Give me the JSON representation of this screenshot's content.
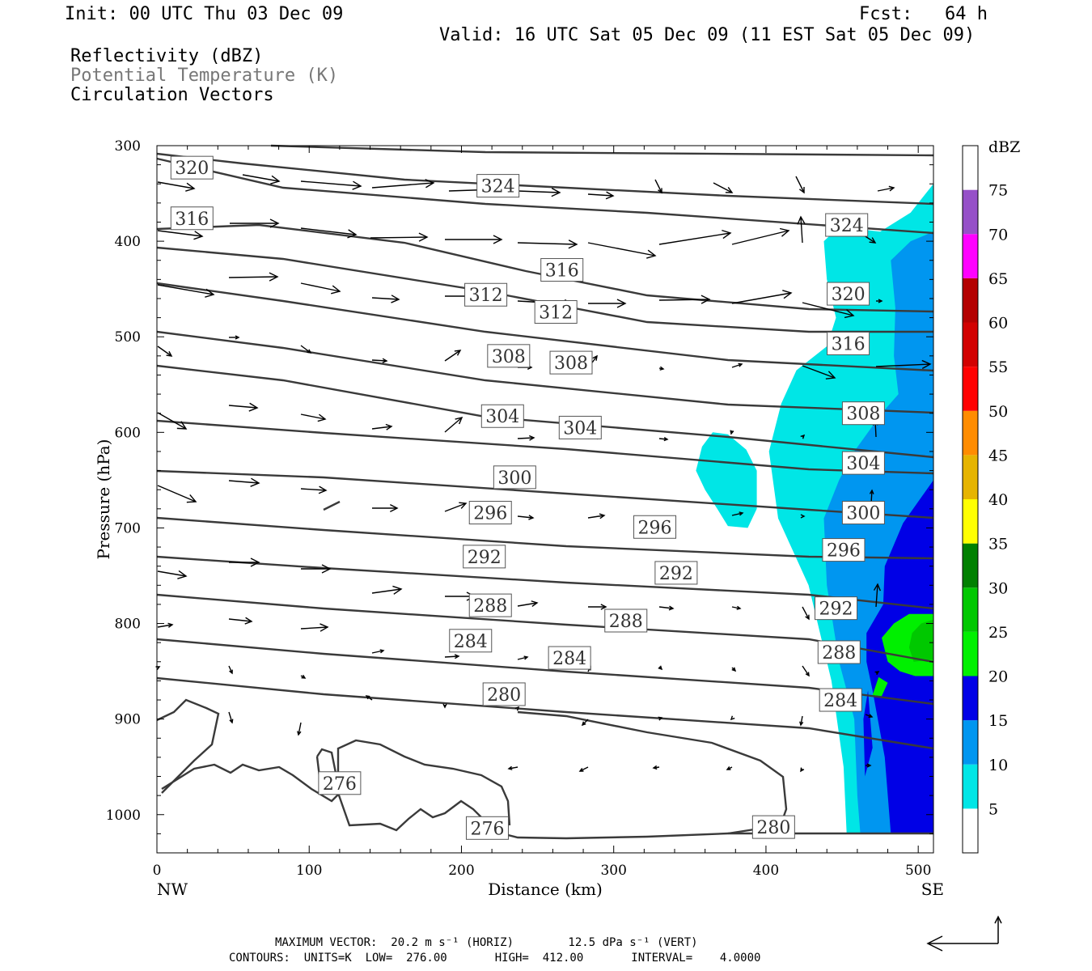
{
  "header": {
    "init": "Init: 00 UTC Thu 03 Dec 09",
    "fcst": "Fcst:   64 h",
    "valid": "Valid: 16 UTC Sat 05 Dec 09 (11 EST Sat 05 Dec 09)",
    "field1": "Reflectivity (dBZ)",
    "field2": "Potential Temperature (K)",
    "field3": "Circulation Vectors"
  },
  "colors": {
    "theta_line": "#3a3a3a",
    "vector": "#000000",
    "bg": "#ffffff"
  },
  "chart_data": {
    "type": "contour",
    "xlabel": "Distance (km)",
    "ylabel": "Pressure (hPa)",
    "x_ticks": [
      0,
      100,
      200,
      300,
      400,
      500
    ],
    "y_ticks": [
      300,
      400,
      500,
      600,
      700,
      800,
      900,
      1000
    ],
    "xlim": [
      0,
      510
    ],
    "ylim": [
      1040,
      300
    ],
    "x_left_label": "NW",
    "x_right_label": "SE",
    "colorbar": {
      "unit": "dBZ",
      "levels": [
        5,
        10,
        15,
        20,
        25,
        30,
        35,
        40,
        45,
        50,
        55,
        60,
        65,
        70,
        75
      ],
      "colors": [
        "#ffffff",
        "#00e6e6",
        "#0096f0",
        "#0000e6",
        "#00f000",
        "#00c800",
        "#008000",
        "#ffff00",
        "#e6b400",
        "#ff8c00",
        "#ff0000",
        "#d20000",
        "#b40000",
        "#ff00ff",
        "#9650c8",
        "#ffffff"
      ]
    },
    "reflectivity_regions": [
      {
        "level": 5,
        "points": [
          [
            453,
            1020
          ],
          [
            451,
            950
          ],
          [
            443,
            860
          ],
          [
            428,
            760
          ],
          [
            408,
            690
          ],
          [
            402,
            620
          ],
          [
            410,
            570
          ],
          [
            420,
            535
          ],
          [
            440,
            510
          ],
          [
            446,
            480
          ],
          [
            440,
            440
          ],
          [
            438,
            400
          ],
          [
            448,
            385
          ],
          [
            475,
            390
          ],
          [
            495,
            370
          ],
          [
            510,
            340
          ],
          [
            510,
            1020
          ]
        ]
      },
      {
        "level": 5,
        "points": [
          [
            354,
            640
          ],
          [
            358,
            615
          ],
          [
            365,
            600
          ],
          [
            375,
            602
          ],
          [
            387,
            618
          ],
          [
            394,
            640
          ],
          [
            394,
            680
          ],
          [
            388,
            700
          ],
          [
            375,
            698
          ],
          [
            368,
            680
          ],
          [
            360,
            660
          ]
        ]
      },
      {
        "level": 10,
        "points": [
          [
            462,
            1020
          ],
          [
            460,
            980
          ],
          [
            458,
            900
          ],
          [
            448,
            840
          ],
          [
            440,
            760
          ],
          [
            438,
            690
          ],
          [
            448,
            650
          ],
          [
            458,
            620
          ],
          [
            476,
            580
          ],
          [
            487,
            560
          ],
          [
            484,
            520
          ],
          [
            485,
            470
          ],
          [
            482,
            420
          ],
          [
            495,
            400
          ],
          [
            510,
            390
          ],
          [
            510,
            1020
          ]
        ]
      },
      {
        "level": 15,
        "points": [
          [
            482,
            1020
          ],
          [
            478,
            940
          ],
          [
            470,
            870
          ],
          [
            466,
            840
          ],
          [
            466,
            810
          ],
          [
            477,
            780
          ],
          [
            478,
            740
          ],
          [
            490,
            695
          ],
          [
            502,
            668
          ],
          [
            510,
            650
          ],
          [
            510,
            1020
          ]
        ]
      },
      {
        "level": 15,
        "points": [
          [
            465,
            960
          ],
          [
            464,
            900
          ],
          [
            467,
            870
          ],
          [
            470,
            930
          ]
        ]
      },
      {
        "level": 20,
        "points": [
          [
            498,
            855
          ],
          [
            488,
            850
          ],
          [
            480,
            840
          ],
          [
            476,
            815
          ],
          [
            484,
            800
          ],
          [
            494,
            790
          ],
          [
            510,
            790
          ],
          [
            510,
            855
          ]
        ]
      },
      {
        "level": 20,
        "points": [
          [
            470,
            875
          ],
          [
            474,
            856
          ],
          [
            480,
            862
          ],
          [
            476,
            876
          ]
        ]
      },
      {
        "level": 25,
        "points": [
          [
            497,
            840
          ],
          [
            494,
            825
          ],
          [
            496,
            810
          ],
          [
            502,
            800
          ],
          [
            510,
            796
          ],
          [
            510,
            838
          ]
        ]
      }
    ],
    "theta_contours": [
      {
        "theta": 320,
        "label_pos": [
          23,
          323
        ]
      },
      {
        "theta": 324,
        "label_pos": [
          224,
          342
        ]
      },
      {
        "theta": 324,
        "label_pos": [
          453,
          383
        ]
      },
      {
        "theta": 316,
        "label_pos": [
          23,
          376
        ]
      },
      {
        "theta": 316,
        "label_pos": [
          266,
          430
        ]
      },
      {
        "theta": 312,
        "label_pos": [
          216,
          456
        ]
      },
      {
        "theta": 312,
        "label_pos": [
          262,
          474
        ]
      },
      {
        "theta": 320,
        "label_pos": [
          454,
          455
        ]
      },
      {
        "theta": 316,
        "label_pos": [
          454,
          507
        ]
      },
      {
        "theta": 308,
        "label_pos": [
          231,
          520
        ]
      },
      {
        "theta": 308,
        "label_pos": [
          272,
          527
        ]
      },
      {
        "theta": 308,
        "label_pos": [
          464,
          580
        ]
      },
      {
        "theta": 304,
        "label_pos": [
          227,
          583
        ]
      },
      {
        "theta": 304,
        "label_pos": [
          278,
          595
        ]
      },
      {
        "theta": 304,
        "label_pos": [
          464,
          632
        ]
      },
      {
        "theta": 300,
        "label_pos": [
          235,
          647
        ]
      },
      {
        "theta": 300,
        "label_pos": [
          464,
          684
        ]
      },
      {
        "theta": 296,
        "label_pos": [
          219,
          684
        ]
      },
      {
        "theta": 296,
        "label_pos": [
          327,
          699
        ]
      },
      {
        "theta": 296,
        "label_pos": [
          451,
          723
        ]
      },
      {
        "theta": 292,
        "label_pos": [
          215,
          730
        ]
      },
      {
        "theta": 292,
        "label_pos": [
          341,
          747
        ]
      },
      {
        "theta": 292,
        "label_pos": [
          446,
          784
        ]
      },
      {
        "theta": 288,
        "label_pos": [
          219,
          781
        ]
      },
      {
        "theta": 288,
        "label_pos": [
          308,
          797
        ]
      },
      {
        "theta": 288,
        "label_pos": [
          448,
          830
        ]
      },
      {
        "theta": 284,
        "label_pos": [
          206,
          818
        ]
      },
      {
        "theta": 284,
        "label_pos": [
          271,
          836
        ]
      },
      {
        "theta": 284,
        "label_pos": [
          449,
          880
        ]
      },
      {
        "theta": 280,
        "label_pos": [
          228,
          874
        ]
      },
      {
        "theta": 280,
        "label_pos": [
          405,
          1013
        ]
      },
      {
        "theta": 276,
        "label_pos": [
          120,
          967
        ]
      },
      {
        "theta": 276,
        "label_pos": [
          217,
          1014
        ]
      }
    ]
  },
  "footer": {
    "maxvec": "MAXIMUM VECTOR:  20.2 m s⁻¹ (HORIZ)        12.5 dPa s⁻¹ (VERT)",
    "contours": "CONTOURS:  UNITS=K  LOW=  276.00       HIGH=  412.00       INTERVAL=    4.0000"
  }
}
